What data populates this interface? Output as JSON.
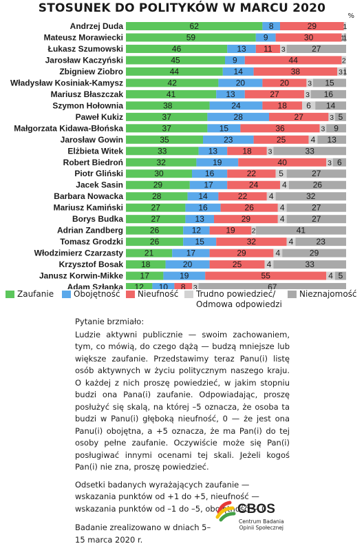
{
  "title": "STOSUNEK DO POLITYKÓW W MARCU 2020",
  "percent_sign": "%",
  "colors": {
    "trust": "#5cc65c",
    "indifference": "#5aa8ea",
    "distrust": "#ef6666",
    "hard_to_say": "#d2d2d2",
    "unknown": "#a9a9a9"
  },
  "legend": {
    "trust": "Zaufanie",
    "indifference": "Obojętność",
    "distrust": "Nieufność",
    "hard_to_say_1": "Trudno powiedzieć/",
    "hard_to_say_2": "Odmowa odpowiedzi",
    "unknown": "Nieznajomość"
  },
  "chart_data": {
    "type": "bar",
    "orientation": "horizontal",
    "stacked": true,
    "unit": "%",
    "categories": [
      "Andrzej Duda",
      "Mateusz Morawiecki",
      "Łukasz Szumowski",
      "Jarosław Kaczyński",
      "Zbigniew Ziobro",
      "Władysław Kosiniak-Kamysz",
      "Mariusz Błaszczak",
      "Szymon Hołownia",
      "Paweł Kukiz",
      "Małgorzata Kidawa-Błońska",
      "Jarosław Gowin",
      "Elżbieta Witek",
      "Robert Biedroń",
      "Piotr Gliński",
      "Jacek Sasin",
      "Barbara Nowacka",
      "Mariusz Kamiński",
      "Borys Budka",
      "Adrian Zandberg",
      "Tomasz Grodzki",
      "Włodzimierz Czarzasty",
      "Krzysztof Bosak",
      "Janusz Korwin-Mikke",
      "Adam Szłapka"
    ],
    "series": [
      {
        "name": "Zaufanie",
        "values": [
          62,
          59,
          46,
          45,
          44,
          42,
          41,
          38,
          37,
          37,
          35,
          33,
          32,
          30,
          29,
          28,
          27,
          27,
          26,
          26,
          21,
          18,
          17,
          12
        ]
      },
      {
        "name": "Obojętność",
        "values": [
          8,
          9,
          13,
          9,
          14,
          20,
          13,
          24,
          28,
          15,
          23,
          13,
          19,
          16,
          17,
          14,
          16,
          13,
          12,
          15,
          17,
          20,
          19,
          10
        ]
      },
      {
        "name": "Nieufność",
        "values": [
          29,
          30,
          11,
          44,
          38,
          20,
          27,
          18,
          27,
          36,
          25,
          18,
          40,
          22,
          24,
          22,
          26,
          29,
          19,
          32,
          29,
          25,
          55,
          8
        ]
      },
      {
        "name": "Trudno powiedzieć/Odmowa odpowiedzi",
        "values": [
          1,
          1,
          3,
          2,
          3,
          3,
          3,
          6,
          3,
          3,
          4,
          3,
          3,
          5,
          4,
          4,
          4,
          4,
          2,
          4,
          4,
          4,
          4,
          3
        ]
      },
      {
        "name": "Nieznajomość",
        "values": [
          0,
          1,
          27,
          0,
          1,
          15,
          16,
          14,
          5,
          9,
          13,
          33,
          6,
          27,
          26,
          32,
          27,
          27,
          41,
          23,
          29,
          33,
          5,
          67
        ]
      }
    ],
    "xlim": [
      0,
      100
    ],
    "legend_position": "bottom"
  },
  "notes": {
    "question_heading": "Pytanie brzmiało:",
    "question_text": "Ludzie aktywni publicznie — swoim zachowaniem, tym, co mówią, do czego dążą — budzą mniejsze lub większe zaufanie. Przedstawimy teraz Panu(i) listę osób aktywnych w życiu politycznym naszego kraju. O każdej z nich proszę powiedzieć, w jakim stopniu budzi ona Pana(i) zaufanie. Odpowiadając, proszę posłużyć się skalą, na której –5 oznacza, że osoba ta budzi w Panu(i) głęboką nieufność, 0 — że jest ona Panu(i) obojętna, a +5 oznacza, że ma Pan(i) do tej osoby pełne zaufanie. Oczywiście może się Pan(i) posługiwać innymi ocenami tej skali. Jeżeli kogoś Pan(i) nie zna, proszę powiedzieć.",
    "definitions": "Odsetki badanych wyrażających zaufanie — wskazania punktów od +1 do +5, nieufność — wskazania punktów od –1 do –5, obojętność — 0.",
    "dates": "Badanie zrealizowano w dniach 5–15 marca 2020 r."
  },
  "logo": {
    "name": "CBOS",
    "subtitle_1": "Centrum Badania",
    "subtitle_2": "Opinii Społecznej"
  }
}
